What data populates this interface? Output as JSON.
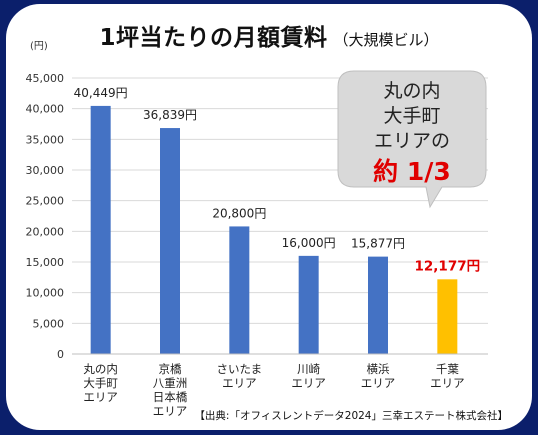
{
  "title": "1坪当たりの月額賃料",
  "subtitle": "（大規模ビル）",
  "source": "【出典:「オフィスレントデータ2024」三幸エステート株式会社】",
  "callout": {
    "lines": [
      "丸の内",
      "大手町",
      "エリアの"
    ],
    "highlight_prefix": "約",
    "highlight": "1/3"
  },
  "colors": {
    "background": "#0b1f6b",
    "bar": "#4472c4",
    "highlight_bar": "#ffc000",
    "highlight_text": "#e00000"
  },
  "chart_data": {
    "type": "bar",
    "title": "1坪当たりの月額賃料",
    "ylabel": "(円)",
    "ylim": [
      0,
      45000
    ],
    "yticks": [
      "0",
      "5,000",
      "10,000",
      "15,000",
      "20,000",
      "25,000",
      "30,000",
      "35,000",
      "40,000",
      "45,000"
    ],
    "categories": [
      [
        "丸の内",
        "大手町",
        "エリア"
      ],
      [
        "京橋",
        "八重洲",
        "日本橋",
        "エリア"
      ],
      [
        "さいたま",
        "エリア"
      ],
      [
        "川崎",
        "エリア"
      ],
      [
        "横浜",
        "エリア"
      ],
      [
        "千葉",
        "エリア"
      ]
    ],
    "values": [
      40449,
      36839,
      20800,
      16000,
      15877,
      12177
    ],
    "data_labels": [
      "40,449円",
      "36,839円",
      "20,800円",
      "16,000円",
      "15,877円",
      "12,177円"
    ],
    "highlight_index": 5
  }
}
